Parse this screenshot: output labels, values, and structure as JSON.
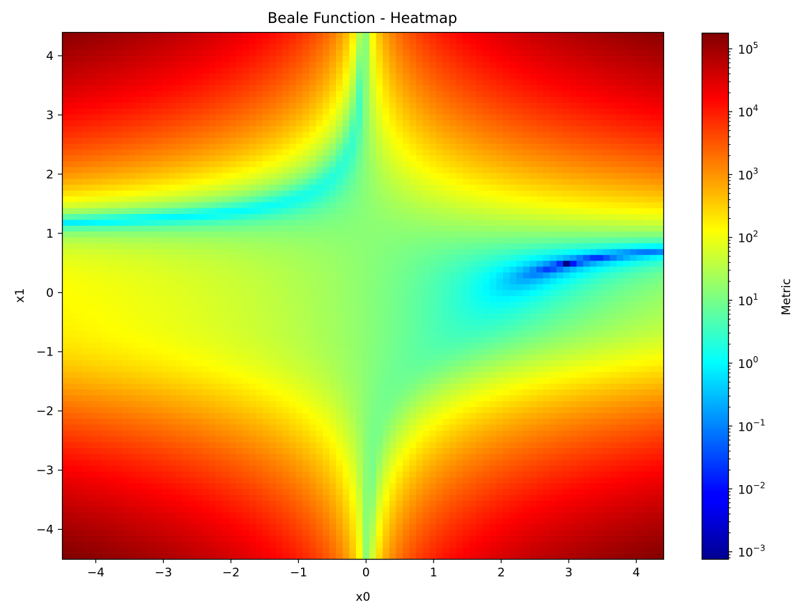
{
  "chart_data": {
    "type": "heatmap",
    "title": "Beale Function - Heatmap",
    "xlabel": "x0",
    "ylabel": "x1",
    "xlim": [
      -4.5,
      4.4
    ],
    "ylim": [
      -4.5,
      4.4
    ],
    "x_ticks": [
      {
        "value": -4,
        "label": "−4"
      },
      {
        "value": -3,
        "label": "−3"
      },
      {
        "value": -2,
        "label": "−2"
      },
      {
        "value": -1,
        "label": "−1"
      },
      {
        "value": 0,
        "label": "0"
      },
      {
        "value": 1,
        "label": "1"
      },
      {
        "value": 2,
        "label": "2"
      },
      {
        "value": 3,
        "label": "3"
      },
      {
        "value": 4,
        "label": "4"
      }
    ],
    "y_ticks": [
      {
        "value": -4,
        "label": "−4"
      },
      {
        "value": -3,
        "label": "−3"
      },
      {
        "value": -2,
        "label": "−2"
      },
      {
        "value": -1,
        "label": "−1"
      },
      {
        "value": 0,
        "label": "0"
      },
      {
        "value": 1,
        "label": "1"
      },
      {
        "value": 2,
        "label": "2"
      },
      {
        "value": 3,
        "label": "3"
      },
      {
        "value": 4,
        "label": "4"
      }
    ],
    "function": "(1.5 - x0 + x0*x1)^2 + (2.25 - x0 + x0*x1^2)^2 + (2.625 - x0 + x0*x1^3)^2",
    "grid_cells": [
      90,
      90
    ],
    "colormap": "jet",
    "color_scale": "log",
    "colorbar": {
      "label": "Metric",
      "range": [
        0.00075,
        180000
      ],
      "ticks": [
        {
          "exp": -3,
          "base": "10",
          "sup": "−3"
        },
        {
          "exp": -2,
          "base": "10",
          "sup": "−2"
        },
        {
          "exp": -1,
          "base": "10",
          "sup": "−1"
        },
        {
          "exp": 0,
          "base": "10",
          "sup": "0"
        },
        {
          "exp": 1,
          "base": "10",
          "sup": "1"
        },
        {
          "exp": 2,
          "base": "10",
          "sup": "2"
        },
        {
          "exp": 3,
          "base": "10",
          "sup": "3"
        },
        {
          "exp": 4,
          "base": "10",
          "sup": "4"
        },
        {
          "exp": 5,
          "base": "10",
          "sup": "5"
        }
      ]
    },
    "grid": false
  }
}
